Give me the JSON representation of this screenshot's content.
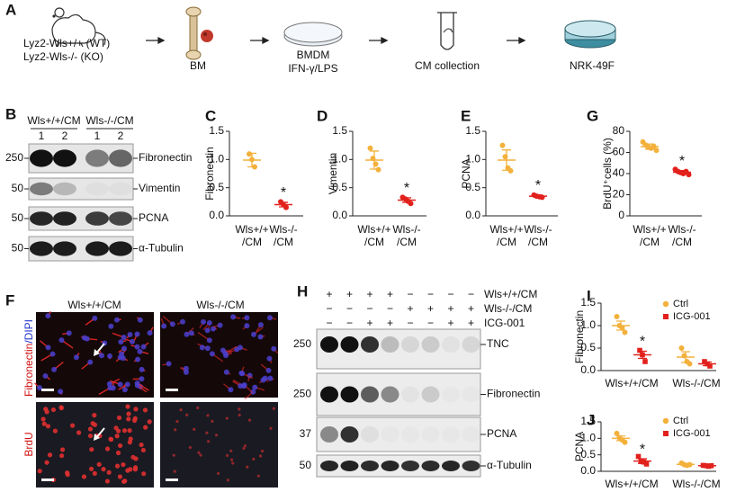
{
  "panel_a": {
    "label": "A",
    "mouse_lines": [
      "Lyz2-Wls+/+ (WT)",
      "Lyz2-Wls-/- (KO)"
    ],
    "steps": [
      "BM",
      "BMDM",
      "IFN-γ/LPS",
      "CM collection",
      "NRK-49F"
    ]
  },
  "panel_b": {
    "label": "B",
    "groups": [
      "Wls+/+/CM",
      "Wls-/-/CM"
    ],
    "lanes": [
      "1",
      "2",
      "1",
      "2"
    ],
    "rows": [
      {
        "marker": 250,
        "protein": "Fibronectin"
      },
      {
        "marker": 50,
        "protein": "Vimentin"
      },
      {
        "marker": 50,
        "protein": "PCNA"
      },
      {
        "marker": 50,
        "protein": "α-Tubulin"
      }
    ]
  },
  "panel_f": {
    "label": "F",
    "columns": [
      "Wls+/+/CM",
      "Wls-/-/CM"
    ],
    "stain_top": [
      "Fibronectin",
      "/DIPI"
    ],
    "stain_bottom": "BrdU"
  },
  "panel_h": {
    "label": "H",
    "treatments": [
      {
        "label": "Wls+/+/CM",
        "signs": [
          "+",
          "+",
          "+",
          "+",
          "−",
          "−",
          "−",
          "−"
        ]
      },
      {
        "label": "Wls-/-/CM",
        "signs": [
          "−",
          "−",
          "−",
          "−",
          "+",
          "+",
          "+",
          "+"
        ]
      },
      {
        "label": "ICG-001",
        "signs": [
          "−",
          "−",
          "+",
          "+",
          "−",
          "−",
          "+",
          "+"
        ]
      }
    ],
    "rows": [
      {
        "marker": 250,
        "protein": "TNC"
      },
      {
        "marker": 250,
        "protein": "Fibronectin"
      },
      {
        "marker": 37,
        "protein": "PCNA"
      },
      {
        "marker": 50,
        "protein": "α-Tubulin"
      }
    ]
  },
  "chart_data": [
    {
      "type": "scatter",
      "panel": "C",
      "ylabel": "Fibronectin",
      "categories": [
        [
          "Wls+/+",
          "/CM"
        ],
        [
          "Wls-/-",
          "/CM"
        ]
      ],
      "ylim": [
        0,
        1.5
      ],
      "yticks": [
        {
          "value": 0,
          "label": "0.0"
        },
        0.5,
        {
          "value": 1,
          "label": "1.0"
        },
        1.5
      ],
      "series": [
        {
          "colors": [
            "#f3b13c",
            "#e2211c"
          ],
          "points": [
            [
              1.1,
              1.0,
              0.87
            ],
            [
              0.25,
              0.2,
              0.15
            ]
          ],
          "mean": [
            0.99,
            0.2
          ],
          "sem": [
            0.12,
            0.04
          ],
          "significance": [
            null,
            "*"
          ]
        }
      ]
    },
    {
      "type": "scatter",
      "panel": "D",
      "ylabel": "Vimentin",
      "categories": [
        [
          "Wls+/+",
          "/CM"
        ],
        [
          "Wls-/-",
          "/CM"
        ]
      ],
      "ylim": [
        0,
        1.5
      ],
      "yticks": [
        {
          "value": 0,
          "label": "0.0"
        },
        0.5,
        {
          "value": 1,
          "label": "1.0"
        },
        1.5
      ],
      "series": [
        {
          "colors": [
            "#f3b13c",
            "#e2211c"
          ],
          "points": [
            [
              1.2,
              1.02,
              0.92,
              0.82
            ],
            [
              0.33,
              0.3,
              0.26,
              0.22
            ]
          ],
          "mean": [
            0.99,
            0.28
          ],
          "sem": [
            0.16,
            0.04
          ],
          "significance": [
            null,
            "*"
          ]
        }
      ]
    },
    {
      "type": "scatter",
      "panel": "E",
      "ylabel": "PCNA",
      "categories": [
        [
          "Wls+/+",
          "/CM"
        ],
        [
          "Wls-/-",
          "/CM"
        ]
      ],
      "ylim": [
        0,
        1.5
      ],
      "yticks": [
        {
          "value": 0,
          "label": "0.0"
        },
        0.5,
        {
          "value": 1,
          "label": "1.0"
        },
        1.5
      ],
      "series": [
        {
          "colors": [
            "#f3b13c",
            "#e2211c"
          ],
          "points": [
            [
              1.25,
              1.05,
              0.85,
              0.8
            ],
            [
              0.37,
              0.35,
              0.34,
              0.33
            ]
          ],
          "mean": [
            0.99,
            0.35
          ],
          "sem": [
            0.18,
            0.02
          ],
          "significance": [
            null,
            "*"
          ]
        }
      ]
    },
    {
      "type": "scatter",
      "panel": "G",
      "ylabel": "BrdU⁺cells (%)",
      "categories": [
        [
          "Wls+/+",
          "/CM"
        ],
        [
          "Wls-/-",
          "/CM"
        ]
      ],
      "ylim": [
        0,
        80
      ],
      "yticks": [
        0,
        20,
        40,
        60,
        80
      ],
      "series": [
        {
          "colors": [
            "#f3b13c",
            "#e2211c"
          ],
          "points": [
            [
              70,
              67,
              65,
              64,
              66,
              62
            ],
            [
              44,
              42,
              41,
              40,
              42,
              39
            ]
          ],
          "mean": [
            65.5,
            41.3
          ],
          "sem": [
            2.5,
            1.5
          ],
          "significance": [
            null,
            "*"
          ]
        }
      ]
    },
    {
      "type": "scatter",
      "panel": "I",
      "ylabel": "Fibronectin",
      "categories": [
        [
          "Wls+/+/CM"
        ],
        [
          "Wls-/-/CM"
        ]
      ],
      "ylim": [
        0,
        1.5
      ],
      "yticks": [
        {
          "value": 0,
          "label": "0.0"
        },
        0.5,
        {
          "value": 1,
          "label": "1.0"
        },
        1.5
      ],
      "series": [
        {
          "name": "Ctrl",
          "color": "#f3b13c",
          "marker": "circle",
          "points": [
            [
              1.2,
              1.0,
              0.95,
              0.85
            ],
            [
              0.5,
              0.33,
              0.2,
              0.15
            ]
          ],
          "mean": [
            1.0,
            0.3
          ],
          "sem": [
            0.1,
            0.12
          ],
          "significance": [
            null,
            null
          ]
        },
        {
          "name": "ICG-001",
          "color": "#e2211c",
          "marker": "square",
          "points": [
            [
              0.45,
              0.35,
              0.2
            ],
            [
              0.2,
              0.15,
              0.1
            ]
          ],
          "mean": [
            0.35,
            0.15
          ],
          "sem": [
            0.08,
            0.04
          ],
          "significance": [
            "*",
            null
          ]
        }
      ]
    },
    {
      "type": "scatter",
      "panel": "J",
      "ylabel": "PCNA",
      "categories": [
        [
          "Wls+/+/CM"
        ],
        [
          "Wls-/-/CM"
        ]
      ],
      "ylim": [
        0,
        1.5
      ],
      "yticks": [
        {
          "value": 0,
          "label": "0.0"
        },
        0.5,
        {
          "value": 1,
          "label": "1.0"
        },
        1.5
      ],
      "series": [
        {
          "name": "Ctrl",
          "color": "#f3b13c",
          "marker": "circle",
          "points": [
            [
              1.15,
              1.02,
              0.95,
              0.88
            ],
            [
              0.25,
              0.2,
              0.18,
              0.2
            ]
          ],
          "mean": [
            1.0,
            0.21
          ],
          "sem": [
            0.07,
            0.02
          ],
          "significance": [
            null,
            null
          ]
        },
        {
          "name": "ICG-001",
          "color": "#e2211c",
          "marker": "square",
          "points": [
            [
              0.45,
              0.3,
              0.28,
              0.22
            ],
            [
              0.18,
              0.17,
              0.15,
              0.17
            ]
          ],
          "mean": [
            0.31,
            0.17
          ],
          "sem": [
            0.07,
            0.01
          ],
          "significance": [
            "*",
            null
          ]
        }
      ]
    }
  ]
}
